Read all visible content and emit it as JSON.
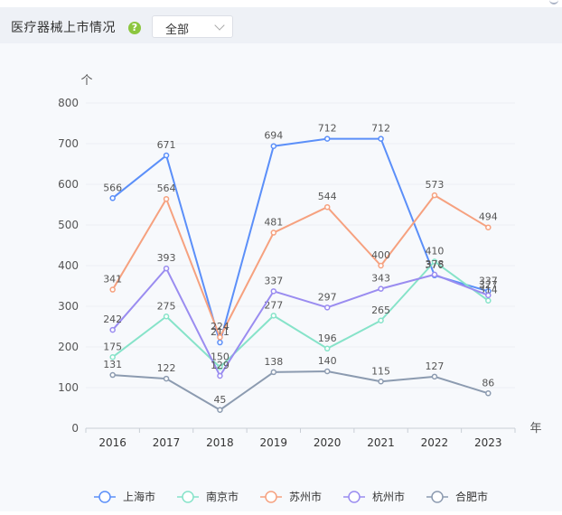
{
  "header": {
    "title": "医疗器械上市情况",
    "help_icon": "help-icon",
    "filter_value": "全部"
  },
  "colors": {
    "上海市": "#5b8ff9",
    "南京市": "#86e3c9",
    "苏州市": "#f6a17f",
    "杭州市": "#9a8cf0",
    "合肥市": "#8c9bb0"
  },
  "chart_data": {
    "type": "line",
    "title": "",
    "xlabel": "年",
    "ylabel": "个",
    "ylim": [
      0,
      800
    ],
    "yticks": [
      0,
      100,
      200,
      300,
      400,
      500,
      600,
      700,
      800
    ],
    "grid": true,
    "legend_position": "bottom",
    "categories": [
      "2016",
      "2017",
      "2018",
      "2019",
      "2020",
      "2021",
      "2022",
      "2023"
    ],
    "series": [
      {
        "name": "上海市",
        "values": [
          566,
          671,
          211,
          694,
          712,
          712,
          376,
          337
        ]
      },
      {
        "name": "南京市",
        "values": [
          175,
          275,
          150,
          277,
          196,
          265,
          410,
          314
        ]
      },
      {
        "name": "苏州市",
        "values": [
          341,
          564,
          224,
          481,
          544,
          400,
          573,
          494
        ]
      },
      {
        "name": "杭州市",
        "values": [
          242,
          393,
          129,
          337,
          297,
          343,
          378,
          327
        ]
      },
      {
        "name": "合肥市",
        "values": [
          131,
          122,
          45,
          138,
          140,
          115,
          127,
          86
        ]
      }
    ]
  }
}
